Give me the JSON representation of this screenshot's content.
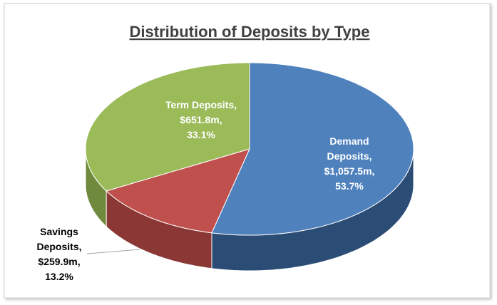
{
  "chart_data": {
    "type": "pie3d",
    "title": "Distribution of Deposits by Type",
    "categories": [
      "Demand Deposits",
      "Savings Deposits",
      "Term Deposits"
    ],
    "values": [
      1057.5,
      259.9,
      651.8
    ],
    "value_labels": [
      "$1,057.5m",
      "$259.9m",
      "$651.8m"
    ],
    "percentages": [
      53.7,
      13.2,
      33.1
    ],
    "percentage_labels": [
      "53.7%",
      "13.2%",
      "33.1%"
    ],
    "label_separator": ",",
    "colors": [
      "#4f81bd",
      "#c0504d",
      "#9bbb59"
    ],
    "side_colors": [
      "#2b4c74",
      "#8a3735",
      "#6f8a3c"
    ]
  }
}
